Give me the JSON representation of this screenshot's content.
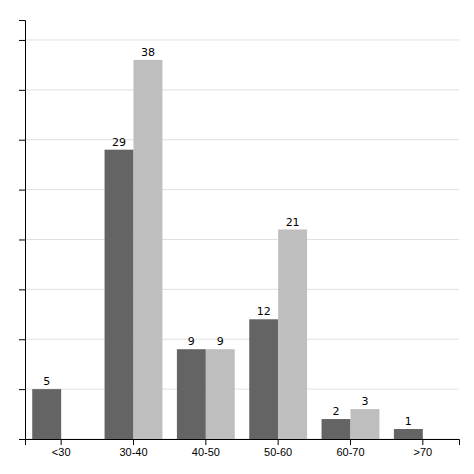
{
  "chart_data": {
    "type": "bar",
    "categories": [
      "<30",
      "30-40",
      "40-50",
      "50-60",
      "60-70",
      ">70"
    ],
    "series": [
      {
        "color": "#646464",
        "values": [
          5,
          29,
          9,
          12,
          2,
          1
        ]
      },
      {
        "color": "#bebebe",
        "values": [
          0,
          38,
          9,
          21,
          3,
          0
        ],
        "value_labels": [
          null,
          "38",
          "9",
          "21",
          "3",
          null
        ]
      }
    ],
    "ylim": [
      0,
      42
    ],
    "yticks": [
      0,
      5,
      10,
      15,
      20,
      25,
      30,
      35,
      40
    ],
    "grid": true,
    "data_labels": true,
    "tick_labels": "x"
  }
}
